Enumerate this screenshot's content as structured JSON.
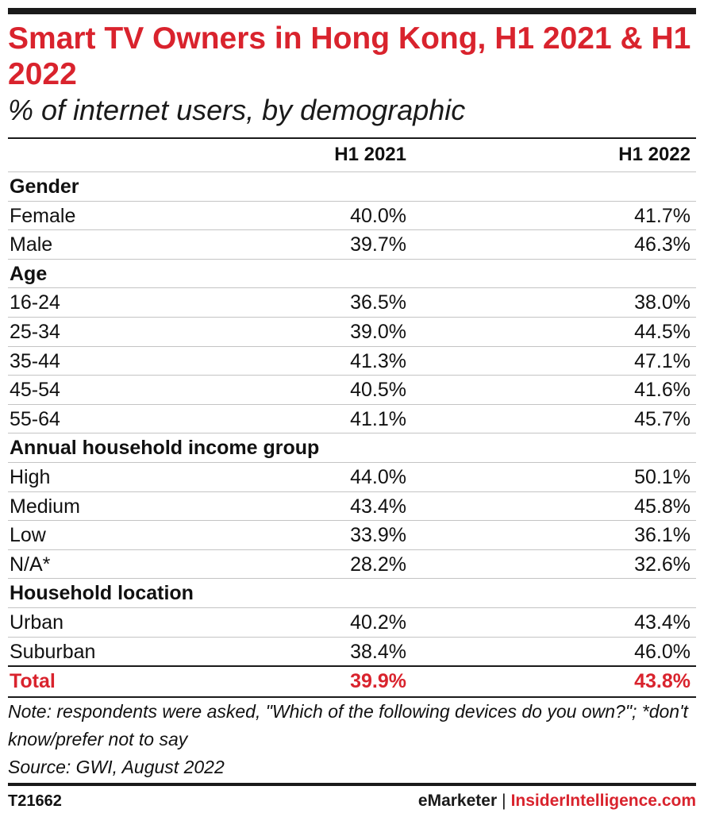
{
  "header": {
    "title": "Smart TV Owners in Hong Kong, H1 2021 & H1 2022",
    "subtitle": "% of internet users, by demographic"
  },
  "chart_data": {
    "type": "table",
    "title": "Smart TV Owners in Hong Kong, H1 2021 & H1 2022",
    "subtitle": "% of internet users, by demographic",
    "columns": [
      "H1 2021",
      "H1 2022"
    ],
    "rows": [
      {
        "kind": "group",
        "label": "Gender"
      },
      {
        "kind": "data",
        "label": "Female",
        "values": [
          "40.0%",
          "41.7%"
        ]
      },
      {
        "kind": "data",
        "label": "Male",
        "values": [
          "39.7%",
          "46.3%"
        ]
      },
      {
        "kind": "group",
        "label": "Age"
      },
      {
        "kind": "data",
        "label": "16-24",
        "values": [
          "36.5%",
          "38.0%"
        ]
      },
      {
        "kind": "data",
        "label": "25-34",
        "values": [
          "39.0%",
          "44.5%"
        ]
      },
      {
        "kind": "data",
        "label": "35-44",
        "values": [
          "41.3%",
          "47.1%"
        ]
      },
      {
        "kind": "data",
        "label": "45-54",
        "values": [
          "40.5%",
          "41.6%"
        ]
      },
      {
        "kind": "data",
        "label": "55-64",
        "values": [
          "41.1%",
          "45.7%"
        ]
      },
      {
        "kind": "group",
        "label": "Annual household income group"
      },
      {
        "kind": "data",
        "label": "High",
        "values": [
          "44.0%",
          "50.1%"
        ]
      },
      {
        "kind": "data",
        "label": "Medium",
        "values": [
          "43.4%",
          "45.8%"
        ]
      },
      {
        "kind": "data",
        "label": "Low",
        "values": [
          "33.9%",
          "36.1%"
        ]
      },
      {
        "kind": "data",
        "label": "N/A*",
        "values": [
          "28.2%",
          "32.6%"
        ]
      },
      {
        "kind": "group",
        "label": "Household location"
      },
      {
        "kind": "data",
        "label": "Urban",
        "values": [
          "40.2%",
          "43.4%"
        ]
      },
      {
        "kind": "data",
        "label": "Suburban",
        "values": [
          "38.4%",
          "46.0%"
        ]
      },
      {
        "kind": "total",
        "label": "Total",
        "values": [
          "39.9%",
          "43.8%"
        ]
      }
    ]
  },
  "footer": {
    "note": "Note: respondents were asked, \"Which of the following devices do you own?\"; *don't know/prefer not to say",
    "source": "Source: GWI, August 2022",
    "chart_id": "T21662",
    "brand_left": "eMarketer",
    "brand_sep": "|",
    "brand_right": "InsiderIntelligence.com"
  },
  "colors": {
    "accent": "#d9232d",
    "text": "#111111",
    "rule": "#1a1a1a",
    "row_divider": "#c4c4c4"
  }
}
